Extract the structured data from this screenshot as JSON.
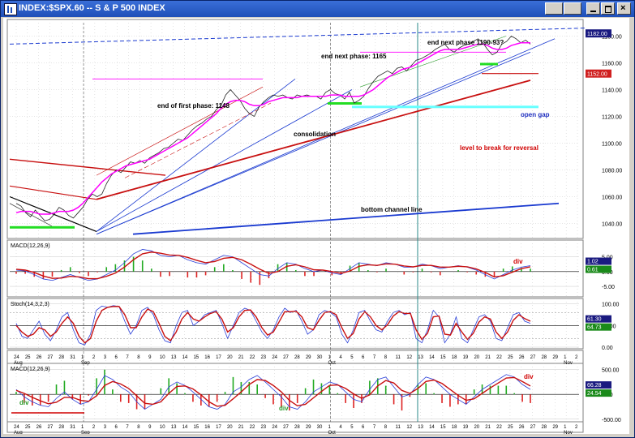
{
  "window": {
    "title": "INDEX:$SPX.60 -- S & P 500 INDEX",
    "buttons": [
      "minimize-grid",
      "restore-grid",
      "minimize",
      "restore",
      "close"
    ]
  },
  "colors": {
    "price": "#222222",
    "ma_fast": "#ff00ff",
    "ma_slow": "#e00000",
    "trend_blue": "#1a3ad0",
    "channel_red": "#c81010",
    "pane_bg": "#ffffff",
    "grid": "#c8c8c8",
    "signal_red": "#c81010",
    "macd_blue": "#2a3fd8",
    "green_bar": "#22aa22",
    "red_bar": "#dd2222",
    "highlight_green": "#22dd22",
    "highlight_cyan": "#66ffff",
    "label_red": "#d00000",
    "label_blue": "#2030c0",
    "last_price_bg": "#1a1a80",
    "marker_red": "#d02020"
  },
  "chart_data": [
    {
      "type": "line",
      "pane": "price",
      "title": "",
      "ylim": [
        1030,
        1190
      ],
      "y_ticks": [
        1040,
        1060,
        1080,
        1100,
        1120,
        1140,
        1160,
        1180
      ],
      "last_price_label": "1182.00",
      "marker_label": "1152.00",
      "series": [
        {
          "values": [
            1055,
            1053,
            1048,
            1045,
            1050,
            1046,
            1042,
            1043,
            1047,
            1052,
            1050,
            1046,
            1044,
            1048,
            1052,
            1058,
            1062,
            1060,
            1062,
            1070,
            1076,
            1080,
            1078,
            1082,
            1086,
            1085,
            1087,
            1085,
            1089,
            1091,
            1093,
            1096,
            1097,
            1100,
            1103,
            1102,
            1106,
            1110,
            1113,
            1115,
            1118,
            1120,
            1125,
            1128,
            1136,
            1140,
            1136,
            1132,
            1126,
            1122,
            1120,
            1127,
            1131,
            1134,
            1136,
            1135,
            1136,
            1134,
            1133,
            1136,
            1135,
            1136,
            1135,
            1135,
            1133,
            1138,
            1140,
            1137,
            1136,
            1133,
            1138,
            1130,
            1132,
            1135,
            1141,
            1146,
            1150,
            1152,
            1154,
            1152,
            1156,
            1157,
            1154,
            1158,
            1162,
            1163,
            1165,
            1167,
            1170,
            1172,
            1174,
            1170,
            1168,
            1171,
            1173,
            1174,
            1176,
            1178,
            1175,
            1170,
            1166,
            1168,
            1174,
            1176,
            1180,
            1178,
            1175,
            1177,
            1174
          ]
        },
        {
          "values": [
            1048,
            1049,
            1049,
            1049,
            1048,
            1047,
            1047,
            1047,
            1048,
            1049,
            1049,
            1049,
            1050,
            1052,
            1055,
            1059,
            1063,
            1067,
            1071,
            1074,
            1077,
            1079,
            1081,
            1083,
            1084,
            1085,
            1086,
            1087,
            1088,
            1090,
            1092,
            1094,
            1096,
            1098,
            1100,
            1102,
            1104,
            1107,
            1110,
            1113,
            1116,
            1119,
            1122,
            1126,
            1129,
            1131,
            1132,
            1132,
            1131,
            1129,
            1128,
            1128,
            1129,
            1131,
            1132,
            1133,
            1134,
            1134,
            1134,
            1134,
            1135,
            1135,
            1135,
            1135,
            1135,
            1135,
            1136,
            1136,
            1136,
            1135,
            1135,
            1135,
            1135,
            1136,
            1138,
            1140,
            1143,
            1146,
            1149,
            1151,
            1153,
            1155,
            1156,
            1157,
            1159,
            1161,
            1163,
            1165,
            1167,
            1169,
            1170,
            1170,
            1170,
            1170,
            1171,
            1172,
            1173,
            1174,
            1174,
            1173,
            1171,
            1170,
            1170,
            1171,
            1173,
            1174,
            1175,
            1175,
            1175
          ]
        }
      ],
      "annotations": [
        {
          "text": "end of first phase: 1148"
        },
        {
          "text": "end next phase: 1165"
        },
        {
          "text": "end next phase 1190-93?"
        },
        {
          "text": "consolidation"
        },
        {
          "text": "open gap"
        },
        {
          "text": "level to break for reversal"
        },
        {
          "text": "bottom channel line"
        }
      ]
    },
    {
      "type": "line",
      "pane": "macd_top",
      "label": "MACD(12,26,9)",
      "y_ticks": [
        5.0,
        0.0,
        -5.0
      ],
      "y_tick_labels": [
        "5.00",
        "0.00",
        "-5.00"
      ],
      "value_labels": [
        "1.02",
        "0.61"
      ],
      "annotation": "div",
      "series": [
        {
          "values": [
            0.5,
            0.2,
            -1,
            -2.5,
            -3,
            -2,
            -1,
            -2,
            -3,
            -2.5,
            -1,
            0.5,
            3,
            6,
            7.5,
            7,
            5.5,
            5,
            5.5,
            4,
            3,
            2.5,
            4,
            5.5,
            5,
            3,
            1,
            -1,
            -1.5,
            1,
            3,
            2.5,
            1,
            0,
            0.5,
            -0.5,
            -1,
            1,
            3,
            2.5,
            2,
            3,
            2.5,
            1.5,
            1.5,
            2.5,
            2,
            1,
            1.5,
            2,
            1.5,
            0.5,
            -1,
            -2.5,
            -1,
            0.5,
            1.5,
            2
          ],
          "name": ""
        },
        {
          "values": [
            0.8,
            0.5,
            -0.3,
            -1.5,
            -2.3,
            -2.2,
            -1.6,
            -1.8,
            -2.4,
            -2.4,
            -1.6,
            -0.5,
            1.5,
            4,
            6,
            6.6,
            6.2,
            5.6,
            5.5,
            4.8,
            3.8,
            3,
            3.4,
            4.5,
            4.8,
            4,
            2.5,
            0.8,
            -0.6,
            0,
            1.8,
            2.3,
            1.6,
            0.6,
            0.5,
            0,
            -0.6,
            0.2,
            1.8,
            2.3,
            2.1,
            2.6,
            2.5,
            1.9,
            1.6,
            2.1,
            2.1,
            1.5,
            1.5,
            1.8,
            1.6,
            0.9,
            -0.3,
            -1.8,
            -1.4,
            -0.2,
            1,
            1.6
          ],
          "name": ""
        }
      ]
    },
    {
      "type": "line",
      "pane": "stochastic",
      "label": "Stoch(14,3,2,3)",
      "y_ticks": [
        100,
        50,
        0
      ],
      "y_tick_labels": [
        "100.00",
        "50.00",
        "0.00"
      ],
      "value_labels": [
        "61.30",
        "64.73"
      ],
      "series": [
        {
          "values": [
            55,
            25,
            20,
            40,
            60,
            30,
            15,
            40,
            70,
            80,
            40,
            10,
            5,
            30,
            85,
            95,
            92,
            96,
            94,
            60,
            30,
            50,
            85,
            92,
            75,
            40,
            15,
            10,
            50,
            80,
            85,
            50,
            60,
            75,
            80,
            85,
            55,
            20,
            50,
            80,
            90,
            85,
            60,
            35,
            20,
            40,
            70,
            90,
            80,
            85,
            60,
            30,
            40,
            75,
            85,
            80,
            70,
            30,
            10,
            40,
            80,
            85,
            60,
            40,
            35,
            60,
            80,
            85,
            75,
            80,
            20,
            10,
            40,
            85,
            70,
            10,
            30,
            70,
            20,
            10,
            40,
            70,
            75,
            60,
            20,
            15,
            45,
            75,
            80,
            60,
            55
          ],
          "name": ""
        },
        {
          "values": [
            50,
            35,
            25,
            30,
            45,
            40,
            25,
            35,
            55,
            70,
            55,
            25,
            10,
            20,
            60,
            85,
            92,
            94,
            94,
            75,
            45,
            45,
            70,
            88,
            82,
            55,
            25,
            15,
            35,
            65,
            80,
            65,
            60,
            70,
            78,
            82,
            65,
            35,
            45,
            70,
            85,
            86,
            70,
            45,
            28,
            35,
            58,
            82,
            82,
            83,
            70,
            45,
            40,
            62,
            80,
            82,
            75,
            45,
            20,
            32,
            65,
            82,
            70,
            50,
            40,
            52,
            72,
            82,
            78,
            78,
            40,
            18,
            32,
            70,
            72,
            30,
            28,
            55,
            35,
            18,
            32,
            58,
            70,
            65,
            35,
            20,
            35,
            62,
            75,
            66,
            60
          ],
          "name": ""
        }
      ]
    },
    {
      "type": "bar",
      "pane": "macd_bottom",
      "label": "MACD(12,26,9)",
      "y_ticks": [
        500,
        0,
        -500
      ],
      "y_tick_labels": [
        "500.00",
        "0.00",
        "-500.00"
      ],
      "value_labels": [
        "66.28",
        "24.54"
      ],
      "annotations": [
        {
          "text": "div"
        },
        {
          "text": "div"
        },
        {
          "text": "div"
        }
      ],
      "series": [
        {
          "values": [
            100,
            -50,
            -150,
            -220,
            -250,
            -80,
            50,
            -100,
            -200,
            -150,
            100,
            380,
            300,
            150,
            50,
            -150,
            -300,
            -200,
            -100,
            150,
            250,
            180,
            50,
            -100,
            -250,
            -300,
            -200,
            50,
            150,
            300,
            380,
            250,
            100,
            -50,
            -250,
            -300,
            -150,
            50,
            150,
            250,
            200,
            50,
            -100,
            -150,
            100,
            300,
            350,
            150,
            -50,
            0,
            200,
            350,
            300,
            150,
            0,
            -100,
            -200,
            -50,
            100,
            200,
            300,
            400,
            350,
            200,
            100
          ],
          "name": ""
        },
        {
          "values": [
            80,
            20,
            -60,
            -130,
            -190,
            -160,
            -60,
            -60,
            -120,
            -140,
            -30,
            180,
            260,
            210,
            120,
            -30,
            -180,
            -200,
            -150,
            20,
            160,
            170,
            110,
            -10,
            -150,
            -240,
            -220,
            -90,
            50,
            200,
            300,
            280,
            180,
            50,
            -120,
            -230,
            -200,
            -70,
            60,
            180,
            190,
            120,
            10,
            -80,
            -10,
            170,
            280,
            230,
            80,
            20,
            120,
            260,
            290,
            220,
            100,
            -20,
            -120,
            -90,
            20,
            130,
            230,
            330,
            340,
            260,
            170
          ],
          "name": ""
        }
      ]
    }
  ],
  "x_axis": {
    "labels": [
      "24",
      "25",
      "26",
      "27",
      "28",
      "31",
      "1",
      "2",
      "3",
      "6",
      "7",
      "8",
      "9",
      "10",
      "13",
      "14",
      "15",
      "16",
      "17",
      "20",
      "21",
      "22",
      "23",
      "24",
      "27",
      "28",
      "29",
      "30",
      "1",
      "4",
      "5",
      "6",
      "7",
      "8",
      "11",
      "12",
      "13",
      "14",
      "15",
      "18",
      "19",
      "20",
      "21",
      "22",
      "25",
      "26",
      "27",
      "28",
      "29",
      "1",
      "2"
    ],
    "month_labels": [
      {
        "text": "Aug"
      },
      {
        "text": "Sep"
      },
      {
        "text": "Oct"
      },
      {
        "text": "Nov"
      }
    ]
  }
}
